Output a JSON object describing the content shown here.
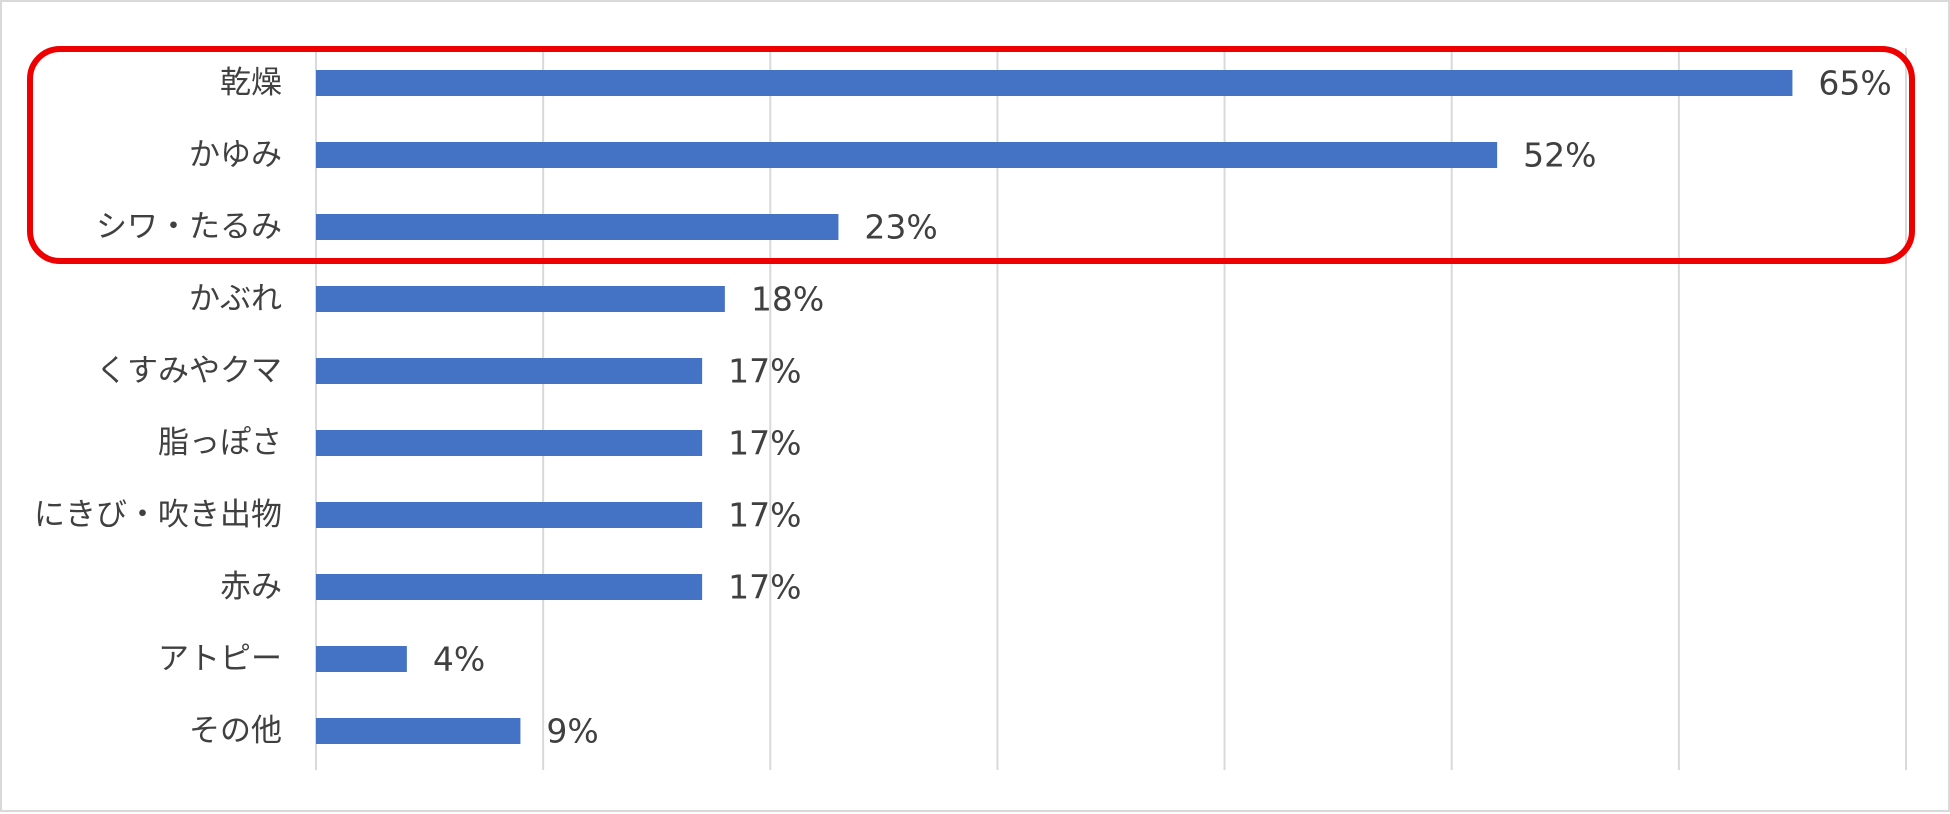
{
  "chart_data": {
    "type": "bar",
    "orientation": "horizontal",
    "categories": [
      "乾燥",
      "かゆみ",
      "シワ・たるみ",
      "かぶれ",
      "くすみやクマ",
      "脂っぽさ",
      "にきび・吹き出物",
      "赤み",
      "アトピー",
      "その他"
    ],
    "values": [
      65,
      52,
      23,
      18,
      17,
      17,
      17,
      17,
      4,
      9
    ],
    "value_labels": [
      "65%",
      "52%",
      "23%",
      "18%",
      "17%",
      "17%",
      "17%",
      "17%",
      "4%",
      "9%"
    ],
    "title": "",
    "xlabel": "",
    "ylabel": "",
    "xlim": [
      0,
      70
    ],
    "grid": true,
    "gridline_count": 7,
    "legend": "none",
    "bar_color": "#4472c4",
    "gridline_color": "#d9d9d9",
    "highlight": {
      "categories": [
        "乾燥",
        "かゆみ",
        "シワ・たるみ"
      ],
      "color": "#ee0000"
    }
  }
}
